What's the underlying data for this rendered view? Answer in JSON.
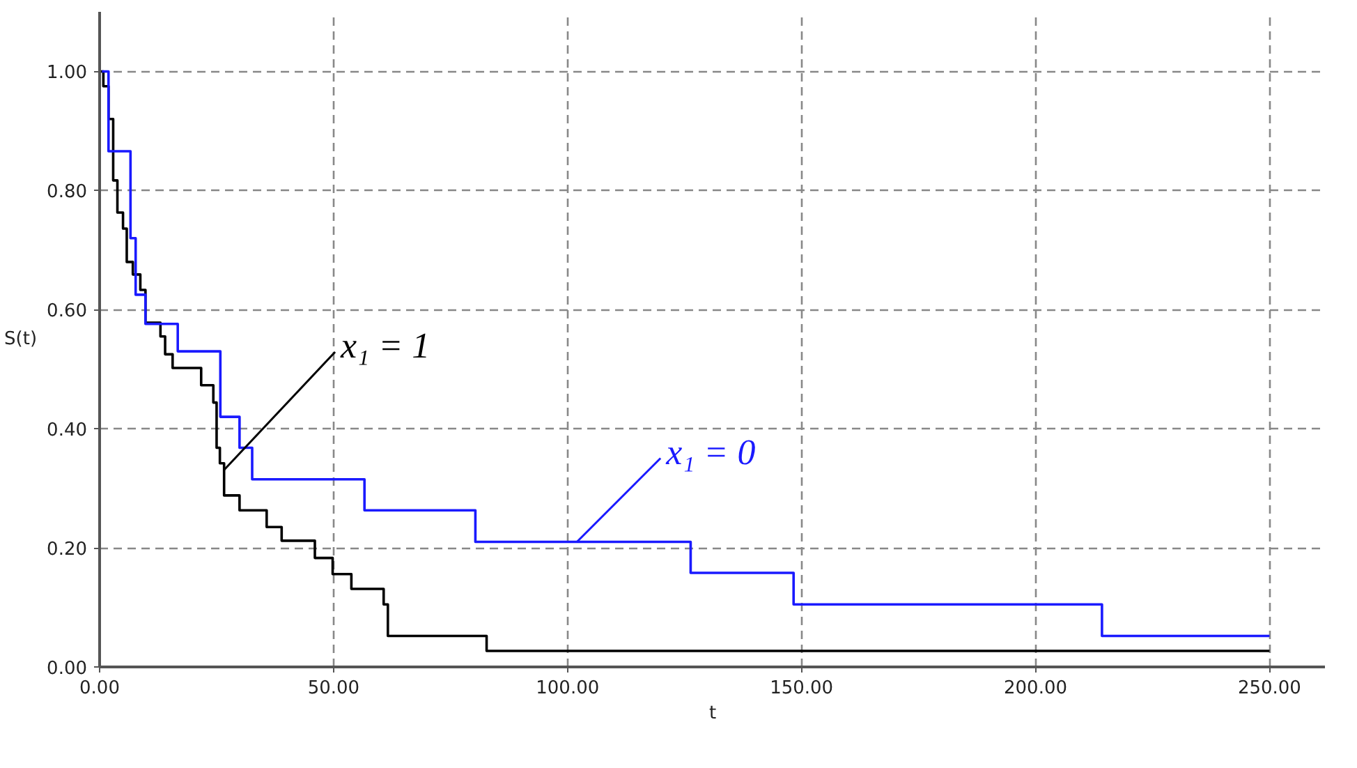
{
  "chart_data": {
    "type": "step",
    "xlabel": "t",
    "ylabel": "S(t)",
    "xlim": [
      0,
      262
    ],
    "ylim": [
      0,
      1.1
    ],
    "xticks": [
      {
        "value": 0,
        "label": "0.00"
      },
      {
        "value": 50,
        "label": "50.00"
      },
      {
        "value": 100,
        "label": "100.00"
      },
      {
        "value": 150,
        "label": "150.00"
      },
      {
        "value": 200,
        "label": "200.00"
      },
      {
        "value": 250,
        "label": "250.00"
      }
    ],
    "yticks": [
      {
        "value": 0,
        "label": "0.00"
      },
      {
        "value": 0.2,
        "label": "0.20"
      },
      {
        "value": 0.4,
        "label": "0.40"
      },
      {
        "value": 0.6,
        "label": "0.60"
      },
      {
        "value": 0.8,
        "label": "0.80"
      },
      {
        "value": 1.0,
        "label": "1.00"
      }
    ],
    "grid": true,
    "line_style": "solid",
    "marker": "none",
    "series": [
      {
        "color": "#000000",
        "x": [
          0,
          0.8,
          1.9,
          2.9,
          3.8,
          5,
          5.8,
          7.1,
          8.7,
          9.8,
          13,
          14,
          15.6,
          21.7,
          24.3,
          25,
          25.7,
          26.6,
          29.9,
          35.7,
          38.9,
          46,
          49.8,
          53.8,
          60.7,
          61.6,
          82.7,
          250
        ],
        "values": [
          1.0,
          0.975,
          0.92,
          0.817,
          0.763,
          0.736,
          0.68,
          0.659,
          0.633,
          0.578,
          0.555,
          0.525,
          0.502,
          0.473,
          0.444,
          0.368,
          0.342,
          0.288,
          0.263,
          0.235,
          0.212,
          0.183,
          0.156,
          0.131,
          0.105,
          0.052,
          0.027,
          0.027
        ]
      },
      {
        "color": "#1a1aff",
        "x": [
          0.5,
          1.9,
          6.6,
          7.7,
          9.8,
          16.7,
          25.8,
          29.9,
          32.6,
          56.6,
          80.3,
          126.3,
          148.3,
          214.2,
          250
        ],
        "values": [
          1.0,
          0.866,
          0.72,
          0.625,
          0.576,
          0.53,
          0.42,
          0.368,
          0.315,
          0.263,
          0.21,
          0.158,
          0.105,
          0.052,
          0.052
        ]
      }
    ],
    "annotations": [
      {
        "text": "x₁ = 1",
        "x": 26.5,
        "y": 0.33
      },
      {
        "text": "x₁ = 0",
        "x": 102,
        "y": 0.21
      }
    ]
  }
}
